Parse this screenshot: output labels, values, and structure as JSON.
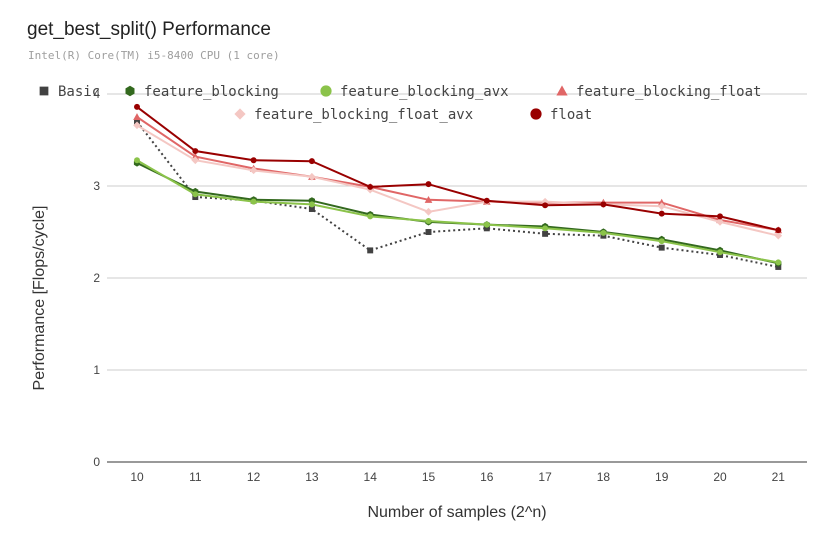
{
  "chart_data": {
    "type": "line",
    "title": "get_best_split() Performance",
    "subtitle": "Intel(R) Core(TM) i5-8400 CPU (1 core)",
    "xlabel": "Number of samples (2^n)",
    "ylabel": "Performance [Flops/cycle]",
    "x": [
      10,
      11,
      12,
      13,
      14,
      15,
      16,
      17,
      18,
      19,
      20,
      21
    ],
    "xticks": [
      "10",
      "11",
      "12",
      "13",
      "14",
      "15",
      "16",
      "17",
      "18",
      "19",
      "20",
      "21"
    ],
    "yticks": [
      "0",
      "1",
      "2",
      "3",
      "4"
    ],
    "ylim": [
      0,
      4
    ],
    "grid": true,
    "legend_position": "top",
    "series": [
      {
        "name": "Basic",
        "color": "#424242",
        "marker": "square",
        "dash": true,
        "values": [
          3.7,
          2.88,
          2.84,
          2.75,
          2.3,
          2.5,
          2.54,
          2.48,
          2.46,
          2.33,
          2.25,
          2.12
        ]
      },
      {
        "name": "feature_blocking",
        "color": "#33691e",
        "marker": "hexagon",
        "dash": false,
        "values": [
          3.25,
          2.94,
          2.85,
          2.84,
          2.69,
          2.61,
          2.58,
          2.56,
          2.5,
          2.42,
          2.3,
          2.16
        ]
      },
      {
        "name": "feature_blocking_avx",
        "color": "#8bc34a",
        "marker": "circle",
        "dash": false,
        "values": [
          3.28,
          2.91,
          2.83,
          2.8,
          2.67,
          2.62,
          2.58,
          2.54,
          2.49,
          2.4,
          2.28,
          2.17
        ]
      },
      {
        "name": "feature_blocking_float",
        "color": "#e06666",
        "marker": "triangle",
        "dash": false,
        "values": [
          3.75,
          3.32,
          3.19,
          3.1,
          2.99,
          2.85,
          2.83,
          2.82,
          2.82,
          2.82,
          2.63,
          2.52
        ]
      },
      {
        "name": "feature_blocking_float_avx",
        "color": "#f4c7c3",
        "marker": "diamond",
        "dash": false,
        "values": [
          3.66,
          3.28,
          3.17,
          3.1,
          2.96,
          2.72,
          2.83,
          2.83,
          2.8,
          2.78,
          2.61,
          2.46
        ]
      },
      {
        "name": "float",
        "color": "#990000",
        "marker": "circle",
        "dash": false,
        "values": [
          3.86,
          3.38,
          3.28,
          3.27,
          2.99,
          3.02,
          2.84,
          2.79,
          2.8,
          2.7,
          2.67,
          2.52
        ]
      }
    ]
  }
}
